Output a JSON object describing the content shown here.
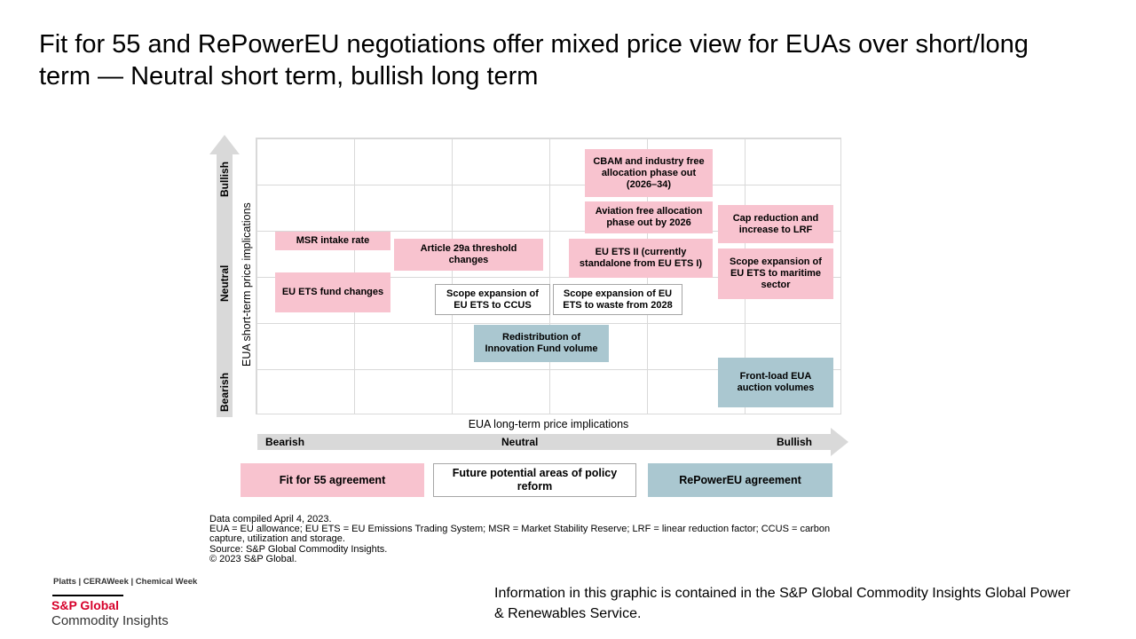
{
  "title": "Fit for 55 and RePowerEU negotiations offer mixed price view for EUAs over short/long term — Neutral short term, bullish long term",
  "y_axis": {
    "label": "EUA short-term price implications",
    "bullish": "Bullish",
    "neutral": "Neutral",
    "bearish": "Bearish"
  },
  "x_axis": {
    "label": "EUA long-term price implications",
    "bearish": "Bearish",
    "neutral": "Neutral",
    "bullish": "Bullish"
  },
  "colors": {
    "fit_for_55": "#f8c3cf",
    "repowereu": "#aac7d0",
    "future": "#ffffff",
    "arrow": "#d9d9d9",
    "brand_red": "#d6002a"
  },
  "items": [
    {
      "text": "MSR intake rate",
      "category": "fit_for_55"
    },
    {
      "text": "Article 29a threshold changes",
      "category": "fit_for_55"
    },
    {
      "text": "EU ETS fund changes",
      "category": "fit_for_55"
    },
    {
      "text": "Scope expansion of EU ETS to CCUS",
      "category": "future"
    },
    {
      "text": "Scope expansion of EU ETS to waste from 2028",
      "category": "future"
    },
    {
      "text": "Redistribution of Innovation Fund volume",
      "category": "repowereu"
    },
    {
      "text": "CBAM and industry free allocation phase out (2026–34)",
      "category": "fit_for_55"
    },
    {
      "text": "Aviation free allocation phase out by 2026",
      "category": "fit_for_55"
    },
    {
      "text": "EU ETS II (currently standalone from EU ETS I)",
      "category": "fit_for_55"
    },
    {
      "text": "Cap reduction and increase to LRF",
      "category": "fit_for_55"
    },
    {
      "text": "Scope expansion of EU ETS to maritime sector",
      "category": "fit_for_55"
    },
    {
      "text": "Front-load EUA auction volumes",
      "category": "repowereu"
    }
  ],
  "legend": {
    "fit_for_55": "Fit for 55 agreement",
    "future": "Future potential areas of policy reform",
    "repowereu": "RePowerEU agreement"
  },
  "footnotes": [
    "Data compiled April 4, 2023.",
    "EUA = EU allowance; EU ETS = EU Emissions Trading System; MSR = Market Stability Reserve; LRF = linear reduction factor; CCUS = carbon capture, utilization and storage.",
    "Source: S&P Global Commodity Insights.",
    "© 2023 S&P Global."
  ],
  "brands": "Platts | CERAWeek | Chemical Week",
  "logo": {
    "line1": "S&P Global",
    "line2": "Commodity Insights"
  },
  "info": "Information in this graphic is contained in the S&P Global Commodity Insights Global Power & Renewables Service."
}
